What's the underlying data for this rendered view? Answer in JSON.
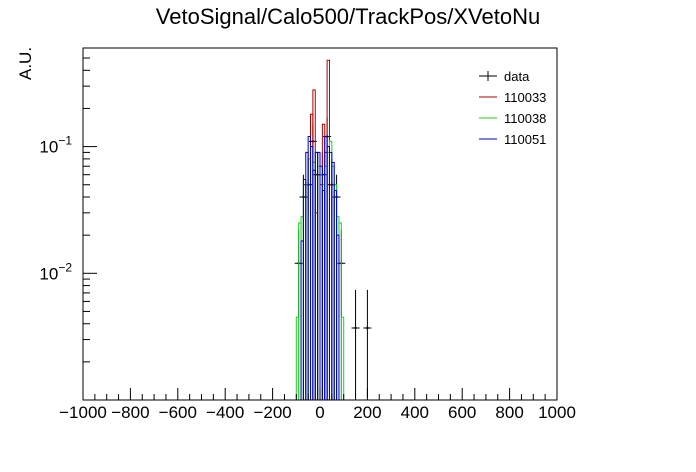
{
  "chart_data": {
    "type": "histogram",
    "title": "VetoSignal/Calo500/TrackPos/XVetoNu",
    "xlabel": "",
    "ylabel": "A.U.",
    "xlim": [
      -1000,
      1000
    ],
    "ylim": [
      0.001,
      0.6
    ],
    "yscale": "log",
    "grid": false,
    "legend_position": "top-right",
    "x_ticks": [
      {
        "v": -1000,
        "label": "−1000"
      },
      {
        "v": -800,
        "label": "−800"
      },
      {
        "v": -600,
        "label": "−600"
      },
      {
        "v": -400,
        "label": "−400"
      },
      {
        "v": -200,
        "label": "−200"
      },
      {
        "v": 0,
        "label": "0"
      },
      {
        "v": 200,
        "label": "200"
      },
      {
        "v": 400,
        "label": "400"
      },
      {
        "v": 600,
        "label": "600"
      },
      {
        "v": 800,
        "label": "800"
      },
      {
        "v": 1000,
        "label": "1000"
      }
    ],
    "y_ticks": [
      {
        "v": 0.1,
        "base": "10",
        "exp": "−1"
      },
      {
        "v": 0.01,
        "base": "10",
        "exp": "−2"
      }
    ],
    "series": [
      {
        "name": "data",
        "color": "#000000",
        "style": "errorbar",
        "points": [
          {
            "x": -90,
            "y": 0.012,
            "lo": 0.0045,
            "hi": 0.022
          },
          {
            "x": -70,
            "y": 0.04,
            "lo": 0.022,
            "hi": 0.06
          },
          {
            "x": -50,
            "y": 0.05,
            "lo": 0.03,
            "hi": 0.08
          },
          {
            "x": -30,
            "y": 0.11,
            "lo": 0.07,
            "hi": 0.15
          },
          {
            "x": -10,
            "y": 0.06,
            "lo": 0.035,
            "hi": 0.09
          },
          {
            "x": 10,
            "y": 0.06,
            "lo": 0.035,
            "hi": 0.09
          },
          {
            "x": 30,
            "y": 0.12,
            "lo": 0.08,
            "hi": 0.17
          },
          {
            "x": 50,
            "y": 0.05,
            "lo": 0.03,
            "hi": 0.08
          },
          {
            "x": 70,
            "y": 0.04,
            "lo": 0.022,
            "hi": 0.06
          },
          {
            "x": 90,
            "y": 0.012,
            "lo": 0.0045,
            "hi": 0.022
          },
          {
            "x": 150,
            "y": 0.0037,
            "lo": 0.00105,
            "hi": 0.0074
          },
          {
            "x": 200,
            "y": 0.0037,
            "lo": 0.00105,
            "hi": 0.0074
          }
        ]
      },
      {
        "name": "110033",
        "color": "#b00000",
        "style": "step",
        "x": [
          -40,
          -30,
          -20,
          -10,
          0,
          10,
          20,
          30,
          40,
          50
        ],
        "y": [
          0.18,
          0.28,
          0.03,
          0.06,
          0.05,
          0.15,
          0.09,
          0.48,
          0.05
        ]
      },
      {
        "name": "110038",
        "color": "#22cc22",
        "style": "step",
        "x": [
          -100,
          -90,
          -80,
          -70,
          -60,
          -50,
          -40,
          -30,
          -20,
          -10,
          0,
          10,
          20,
          30,
          40,
          50,
          60,
          70,
          80,
          90,
          100
        ],
        "y": [
          0.0045,
          0.025,
          0.028,
          0.055,
          0.05,
          0.08,
          0.1,
          0.075,
          0.09,
          0.07,
          0.06,
          0.05,
          0.07,
          0.09,
          0.11,
          0.07,
          0.05,
          0.028,
          0.025,
          0.0045
        ]
      },
      {
        "name": "110051",
        "color": "#0000bb",
        "style": "step",
        "x": [
          -80,
          -70,
          -60,
          -50,
          -40,
          -30,
          -20,
          -10,
          0,
          10,
          20,
          30,
          40,
          50,
          60,
          70,
          80
        ],
        "y": [
          0.018,
          0.055,
          0.09,
          0.12,
          0.1,
          0.065,
          0.09,
          0.09,
          0.07,
          0.045,
          0.12,
          0.1,
          0.09,
          0.075,
          0.045,
          0.02
        ]
      }
    ]
  }
}
